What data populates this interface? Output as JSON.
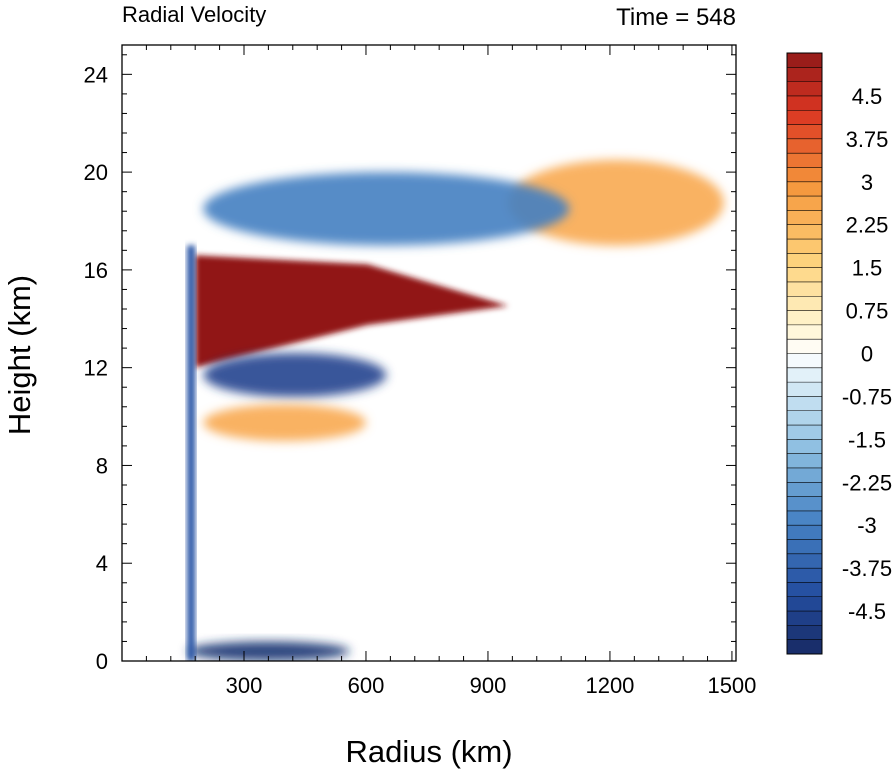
{
  "chart_data": {
    "type": "heatmap",
    "title_left": "Radial Velocity",
    "title_right": "Time = 548",
    "xlabel": "Radius (km)",
    "ylabel": "Height (km)",
    "xlim": [
      0,
      1510
    ],
    "ylim": [
      0,
      25.2
    ],
    "xticks": [
      {
        "value": 300,
        "label": "300"
      },
      {
        "value": 600,
        "label": "600"
      },
      {
        "value": 900,
        "label": "900"
      },
      {
        "value": 1200,
        "label": "1200"
      },
      {
        "value": 1500,
        "label": "1500"
      }
    ],
    "yticks": [
      {
        "value": 0,
        "label": "0"
      },
      {
        "value": 4,
        "label": "4"
      },
      {
        "value": 8,
        "label": "8"
      },
      {
        "value": 12,
        "label": "12"
      },
      {
        "value": 16,
        "label": "16"
      },
      {
        "value": 20,
        "label": "20"
      },
      {
        "value": 24,
        "label": "24"
      }
    ],
    "colorbar": {
      "min": -5.25,
      "max": 5.25,
      "step": 0.25,
      "labels": [
        "4.5",
        "3.75",
        "3",
        "2.25",
        "1.5",
        "0.75",
        "0",
        "-0.75",
        "-1.5",
        "-2.25",
        "-3",
        "-3.75",
        "-4.5"
      ],
      "label_values": [
        4.5,
        3.75,
        3,
        2.25,
        1.5,
        0.75,
        0,
        -0.75,
        -1.5,
        -2.25,
        -3,
        -3.75,
        -4.5
      ]
    },
    "features": [
      {
        "name": "upper outflow jet",
        "x": [
          180,
          950
        ],
        "y": [
          12,
          16.6
        ],
        "value": 5.5
      },
      {
        "name": "outflow extension",
        "x": [
          950,
          1480
        ],
        "y": [
          17,
          20.5
        ],
        "value": 2.5
      },
      {
        "name": "inflow below outflow",
        "x": [
          200,
          650
        ],
        "y": [
          10.8,
          12.6
        ],
        "value": -4.5
      },
      {
        "name": "return inflow aloft",
        "x": [
          200,
          1100
        ],
        "y": [
          17,
          20
        ],
        "value": -3
      },
      {
        "name": "boundary-layer inflow",
        "x": [
          160,
          560
        ],
        "y": [
          0,
          0.8
        ],
        "value": -5
      },
      {
        "name": "mid-level outflow",
        "x": [
          200,
          600
        ],
        "y": [
          9,
          10.5
        ],
        "value": 2.5
      },
      {
        "name": "eyewall column",
        "x": [
          160,
          180
        ],
        "y": [
          0,
          17
        ],
        "value": -4
      }
    ]
  }
}
